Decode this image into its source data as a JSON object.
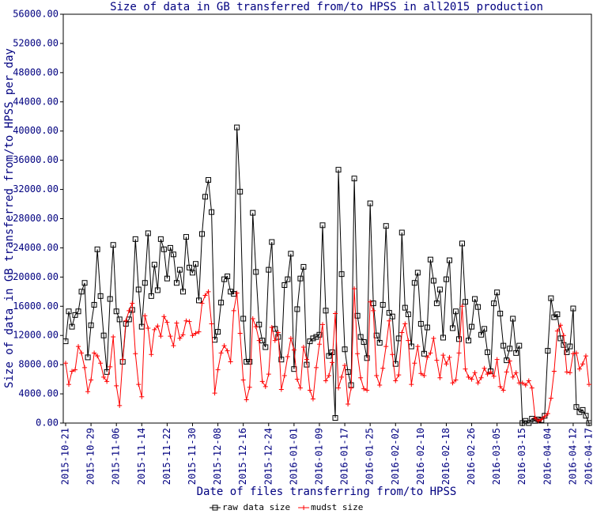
{
  "chart_data": {
    "type": "line",
    "title": "Size of data in GB transferred  from/to HPSS in all2015 production",
    "x_label": "Date of files transferring from/to HPSS",
    "y_label": "Size of data in GB transferred  from/to HPSS per day",
    "categories": [
      "2015-10-21",
      null,
      null,
      null,
      null,
      null,
      null,
      null,
      "2015-10-29",
      null,
      null,
      null,
      null,
      null,
      null,
      null,
      "2015-11-06",
      null,
      null,
      null,
      null,
      null,
      null,
      null,
      "2015-11-14",
      null,
      null,
      null,
      null,
      null,
      null,
      null,
      "2015-11-22",
      null,
      null,
      null,
      null,
      null,
      null,
      null,
      "2015-11-30",
      null,
      null,
      null,
      null,
      null,
      null,
      null,
      "2015-12-08",
      null,
      null,
      null,
      null,
      null,
      null,
      null,
      "2015-12-16",
      null,
      null,
      null,
      null,
      null,
      null,
      null,
      "2015-12-24",
      null,
      null,
      null,
      null,
      null,
      null,
      null,
      "2016-01-01",
      null,
      null,
      null,
      null,
      null,
      null,
      null,
      "2016-01-09",
      null,
      null,
      null,
      null,
      null,
      null,
      null,
      "2016-01-17",
      null,
      null,
      null,
      null,
      null,
      null,
      null,
      "2016-01-25",
      null,
      null,
      null,
      null,
      null,
      null,
      null,
      "2016-02-02",
      null,
      null,
      null,
      null,
      null,
      null,
      null,
      "2016-02-10",
      null,
      null,
      null,
      null,
      null,
      null,
      null,
      "2016-02-18",
      null,
      null,
      null,
      null,
      null,
      null,
      null,
      "2016-02-26",
      null,
      null,
      null,
      null,
      null,
      null,
      null,
      "2016-03-05",
      null,
      null,
      null,
      null,
      null,
      null,
      null,
      "2016-03-15",
      null,
      null,
      null,
      null,
      null,
      null,
      null,
      "2016-04-04",
      null,
      null,
      null,
      null,
      null,
      null,
      null,
      "2016-04-12",
      null,
      null,
      null,
      null,
      "2016-04-17"
    ],
    "series": [
      {
        "name": "raw data size",
        "color": "#000000",
        "marker": "square",
        "values": [
          11200,
          15300,
          13200,
          14800,
          15300,
          18000,
          19200,
          9000,
          13400,
          16200,
          23800,
          17400,
          12000,
          7000,
          17000,
          24400,
          15300,
          14200,
          8400,
          13600,
          14200,
          15500,
          25200,
          18300,
          13200,
          19200,
          26000,
          17400,
          21700,
          18200,
          25200,
          23800,
          19800,
          24000,
          23100,
          19200,
          21000,
          18000,
          25500,
          21300,
          20600,
          21800,
          16800,
          25900,
          31000,
          33300,
          28900,
          11400,
          12500,
          16500,
          19700,
          20100,
          18000,
          17700,
          40500,
          31700,
          14300,
          8400,
          8400,
          28800,
          20700,
          13500,
          11300,
          10400,
          21000,
          24800,
          12900,
          11800,
          8700,
          18900,
          19700,
          23200,
          7400,
          15600,
          19800,
          21400,
          8000,
          11200,
          11600,
          11800,
          12100,
          27100,
          15400,
          9200,
          9700,
          700,
          34700,
          20400,
          10100,
          7000,
          5200,
          33500,
          14700,
          11800,
          11100,
          8900,
          30100,
          16400,
          12000,
          11000,
          16200,
          27000,
          15100,
          14600,
          8100,
          11600,
          26100,
          15800,
          14900,
          10500,
          19200,
          20600,
          13600,
          9500,
          13100,
          22400,
          19500,
          16400,
          18300,
          11700,
          19700,
          22300,
          13000,
          15300,
          11500,
          24600,
          16600,
          11300,
          13200,
          17000,
          15900,
          12100,
          12900,
          9700,
          7100,
          16400,
          17900,
          15000,
          10600,
          8600,
          10200,
          14300,
          9600,
          10600,
          0,
          300,
          0,
          600,
          300,
          500,
          400,
          1000,
          9900,
          17100,
          14500,
          14900,
          11600,
          10700,
          9700,
          10500,
          15700,
          2200,
          1500,
          1800,
          1000,
          0
        ]
      },
      {
        "name": "mudst size",
        "color": "#ff0000",
        "marker": "plus",
        "values": [
          8200,
          5300,
          7100,
          7300,
          10500,
          9600,
          7600,
          4300,
          5900,
          9600,
          9200,
          8200,
          6300,
          5700,
          7700,
          11800,
          5100,
          2400,
          8700,
          14000,
          15400,
          16400,
          9500,
          5300,
          3600,
          14700,
          13000,
          9400,
          12800,
          13300,
          11900,
          14600,
          13800,
          11900,
          10600,
          13700,
          11600,
          12100,
          14000,
          13900,
          12000,
          12300,
          12500,
          16400,
          17500,
          18000,
          13600,
          4100,
          7300,
          9600,
          10600,
          9900,
          8400,
          15400,
          17800,
          12300,
          5900,
          3200,
          4900,
          14300,
          13200,
          11300,
          5700,
          5000,
          6700,
          13100,
          11300,
          12400,
          4600,
          6500,
          9100,
          11600,
          10000,
          6000,
          4800,
          10400,
          8700,
          4500,
          3300,
          7600,
          10800,
          13500,
          5800,
          6500,
          8300,
          15000,
          4800,
          6300,
          7900,
          2600,
          4800,
          18400,
          9500,
          6200,
          4700,
          4500,
          16600,
          15400,
          6500,
          5200,
          7500,
          10500,
          14000,
          9400,
          5800,
          6600,
          12400,
          13600,
          11300,
          5300,
          8200,
          10500,
          6800,
          6500,
          9000,
          9600,
          11600,
          8600,
          6200,
          9300,
          8100,
          9000,
          5500,
          5900,
          9600,
          16000,
          7400,
          6300,
          6000,
          6900,
          5500,
          6200,
          7500,
          6700,
          7000,
          6400,
          8700,
          5000,
          4500,
          7000,
          8500,
          6300,
          6900,
          5500,
          5500,
          5200,
          5800,
          4800,
          700,
          300,
          500,
          900,
          1300,
          3400,
          7100,
          12600,
          13400,
          12000,
          7000,
          6900,
          9500,
          9600,
          7400,
          8100,
          9200,
          5300
        ]
      }
    ],
    "ylim": [
      0,
      56000
    ],
    "yticks": [
      {
        "value": 0,
        "label": "0.00"
      },
      {
        "value": 4000,
        "label": "4000.00"
      },
      {
        "value": 8000,
        "label": "8000.00"
      },
      {
        "value": 12000,
        "label": "12000.00"
      },
      {
        "value": 16000,
        "label": "16000.00"
      },
      {
        "value": 20000,
        "label": "20000.00"
      },
      {
        "value": 24000,
        "label": "24000.00"
      },
      {
        "value": 28000,
        "label": "28000.00"
      },
      {
        "value": 32000,
        "label": "32000.00"
      },
      {
        "value": 36000,
        "label": "36000.00"
      },
      {
        "value": 40000,
        "label": "40000.00"
      },
      {
        "value": 44000,
        "label": "44000.00"
      },
      {
        "value": 48000,
        "label": "48000.00"
      },
      {
        "value": 52000,
        "label": "52000.00"
      },
      {
        "value": 56000,
        "label": "56000.00"
      }
    ],
    "grid": false
  }
}
